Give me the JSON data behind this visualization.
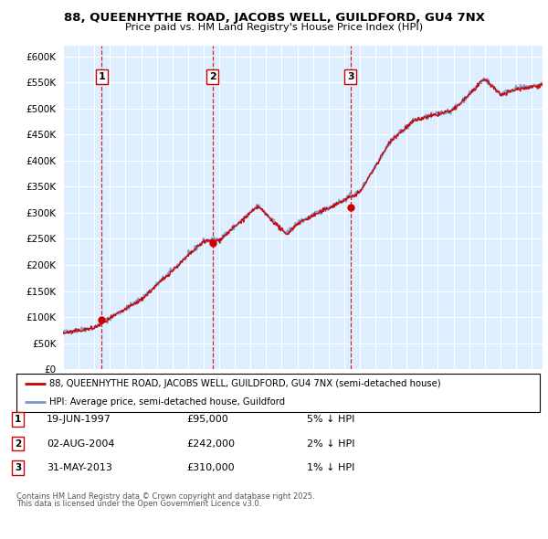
{
  "title1": "88, QUEENHYTHE ROAD, JACOBS WELL, GUILDFORD, GU4 7NX",
  "title2": "Price paid vs. HM Land Registry's House Price Index (HPI)",
  "x_start_year": 1995,
  "x_end_year": 2025.7,
  "y_min": 0,
  "y_max": 620000,
  "y_ticks": [
    0,
    50000,
    100000,
    150000,
    200000,
    250000,
    300000,
    350000,
    400000,
    450000,
    500000,
    550000,
    600000
  ],
  "y_tick_labels": [
    "£0",
    "£50K",
    "£100K",
    "£150K",
    "£200K",
    "£250K",
    "£300K",
    "£350K",
    "£400K",
    "£450K",
    "£500K",
    "£550K",
    "£600K"
  ],
  "plot_bg_color": "#ddeeff",
  "grid_color": "#ffffff",
  "line_color_red": "#cc0000",
  "line_color_blue": "#7799cc",
  "marker_color": "#cc0000",
  "vline_color": "#cc0000",
  "sale_points": [
    {
      "year": 1997.47,
      "price": 95000,
      "label": "1"
    },
    {
      "year": 2004.58,
      "price": 242000,
      "label": "2"
    },
    {
      "year": 2013.41,
      "price": 310000,
      "label": "3"
    }
  ],
  "legend_line1": "88, QUEENHYTHE ROAD, JACOBS WELL, GUILDFORD, GU4 7NX (semi-detached house)",
  "legend_line2": "HPI: Average price, semi-detached house, Guildford",
  "table_rows": [
    {
      "num": "1",
      "date": "19-JUN-1997",
      "price": "£95,000",
      "change": "5% ↓ HPI"
    },
    {
      "num": "2",
      "date": "02-AUG-2004",
      "price": "£242,000",
      "change": "2% ↓ HPI"
    },
    {
      "num": "3",
      "date": "31-MAY-2013",
      "price": "£310,000",
      "change": "1% ↓ HPI"
    }
  ],
  "footnote1": "Contains HM Land Registry data © Crown copyright and database right 2025.",
  "footnote2": "This data is licensed under the Open Government Licence v3.0."
}
